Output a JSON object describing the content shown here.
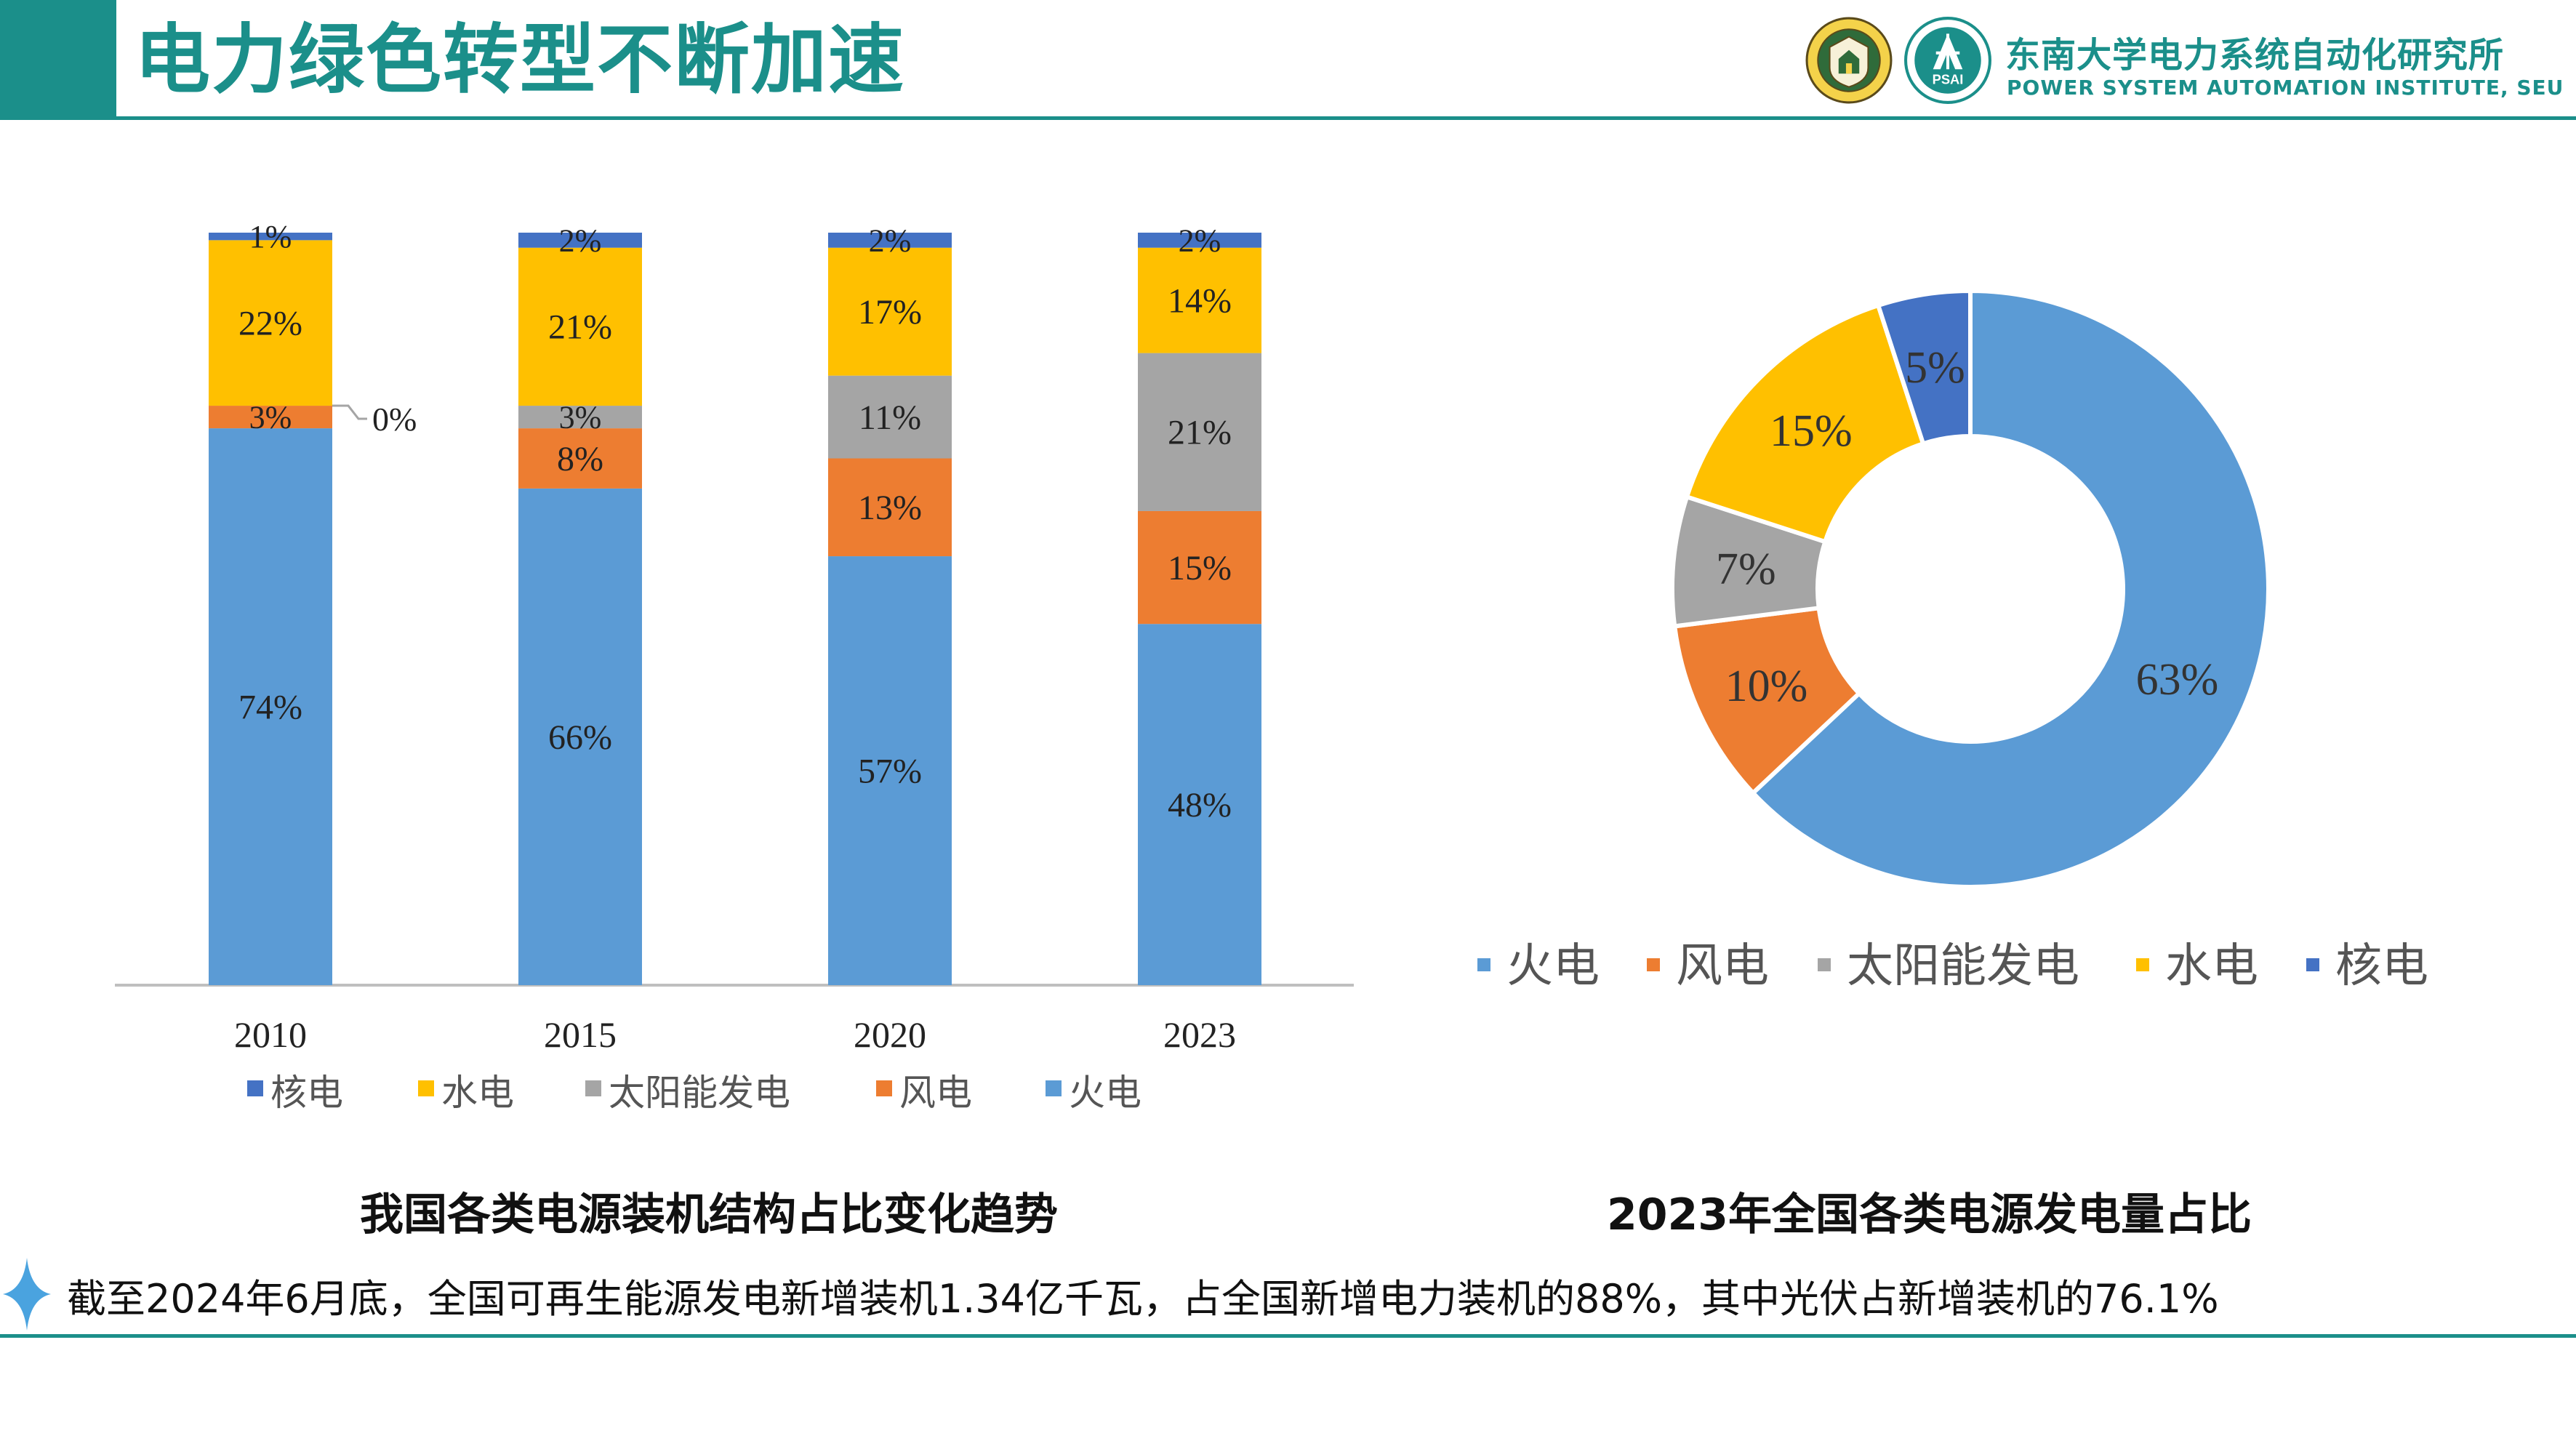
{
  "header": {
    "title": "电力绿色转型不断加速",
    "institute_cn": "东南大学电力系统自动化研究所",
    "institute_en": "POWER SYSTEM AUTOMATION INSTITUTE, SEU",
    "logo_left_icon": "seu-crest-logo-icon",
    "logo_right_icon": "psai-logo-icon",
    "logo_right_text": "PSAI"
  },
  "colors": {
    "theme": "#1b8f8a",
    "火电": "#5b9bd5",
    "风电": "#ed7d31",
    "太阳能发电": "#a5a5a5",
    "水电": "#ffc000",
    "核电": "#4472c4"
  },
  "chart_data": [
    {
      "type": "bar",
      "stacked": true,
      "caption": "我国各类电源装机结构占比变化趋势",
      "categories": [
        "2010",
        "2015",
        "2020",
        "2023"
      ],
      "series": [
        {
          "name": "火电",
          "values": [
            74,
            66,
            57,
            48
          ],
          "labels": [
            "74%",
            "66%",
            "57%",
            "48%"
          ]
        },
        {
          "name": "风电",
          "values": [
            3,
            8,
            13,
            15
          ],
          "labels": [
            "3%",
            "8%",
            "13%",
            "15%"
          ]
        },
        {
          "name": "太阳能发电",
          "values": [
            0,
            3,
            11,
            21
          ],
          "labels": [
            "0%",
            "3%",
            "11%",
            "21%"
          ]
        },
        {
          "name": "水电",
          "values": [
            22,
            21,
            17,
            14
          ],
          "labels": [
            "22%",
            "21%",
            "17%",
            "14%"
          ]
        },
        {
          "name": "核电",
          "values": [
            1,
            2,
            2,
            2
          ],
          "labels": [
            "1%",
            "2%",
            "2%",
            "2%"
          ]
        }
      ],
      "legend": [
        "核电",
        "水电",
        "太阳能发电",
        "风电",
        "火电"
      ],
      "legend_position": "bottom",
      "ylim": [
        0,
        100
      ],
      "grid": false
    },
    {
      "type": "pie",
      "donut": true,
      "caption": "2023年全国各类电源发电量占比",
      "slices": [
        {
          "name": "火电",
          "value": 63,
          "label": "63%"
        },
        {
          "name": "风电",
          "value": 10,
          "label": "10%"
        },
        {
          "name": "太阳能发电",
          "value": 7,
          "label": "7%"
        },
        {
          "name": "水电",
          "value": 15,
          "label": "15%"
        },
        {
          "name": "核电",
          "value": 5,
          "label": "5%"
        }
      ],
      "legend": [
        "火电",
        "风电",
        "太阳能发电",
        "水电",
        "核电"
      ],
      "legend_position": "bottom"
    }
  ],
  "footnote": {
    "icon": "sparkle-star-icon",
    "text": "截至2024年6月底，全国可再生能源发电新增装机1.34亿千瓦，占全国新增电力装机的88%，其中光伏占新增装机的76.1%"
  }
}
